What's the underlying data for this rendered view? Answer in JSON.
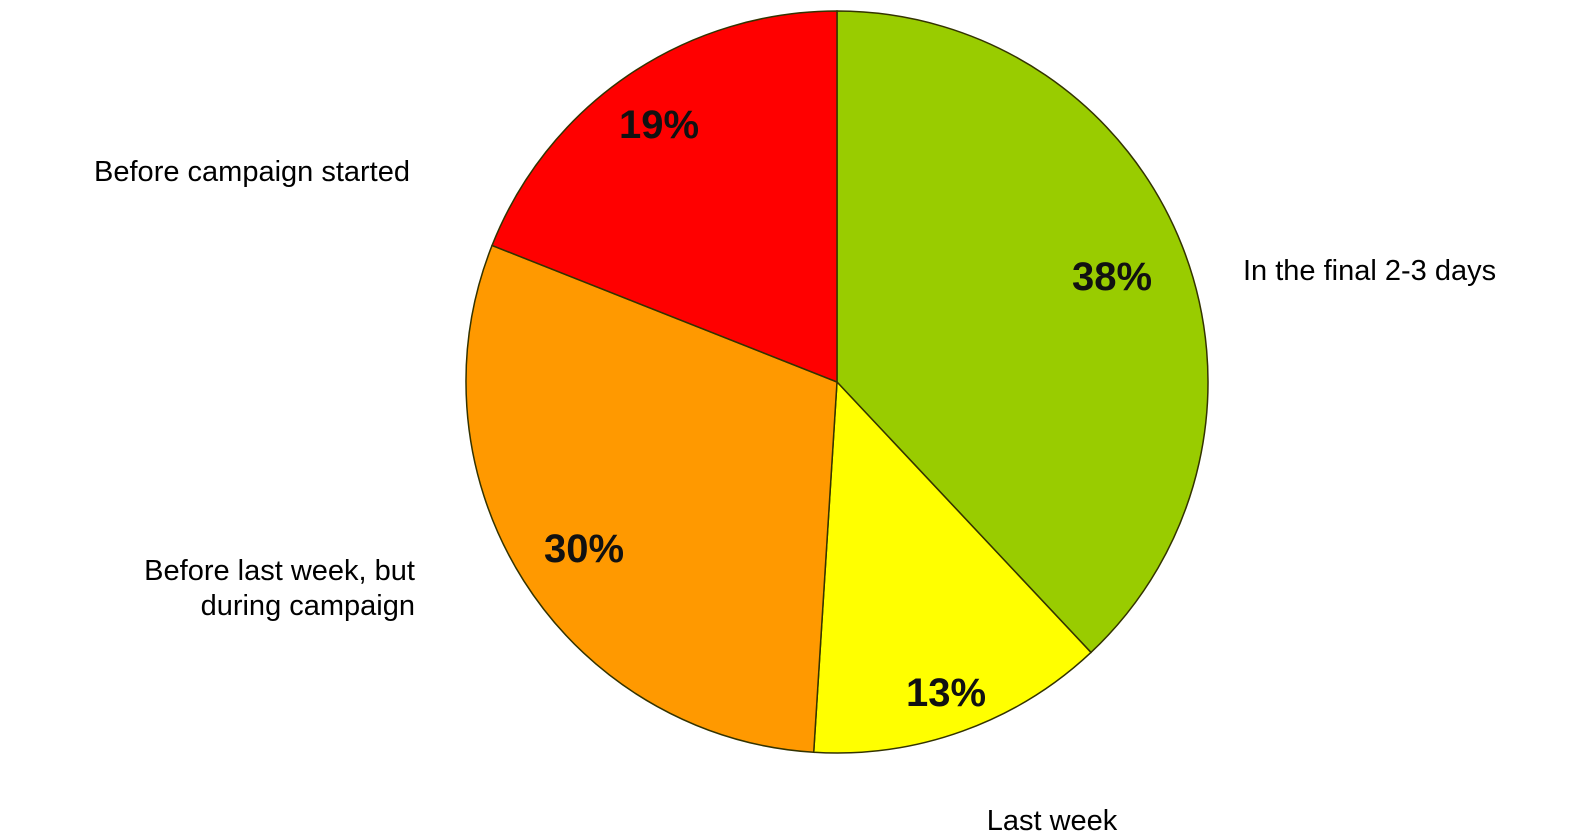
{
  "chart_data": {
    "type": "pie",
    "start_angle_deg": 0,
    "direction": "clockwise",
    "slices": [
      {
        "label": "In the final 2-3 days",
        "value": 38,
        "value_label": "38%",
        "color": "#99CC00"
      },
      {
        "label": "Last week",
        "value": 13,
        "value_label": "13%",
        "color": "#FFFF00"
      },
      {
        "label": "Before last week, but during campaign",
        "value": 30,
        "value_label": "30%",
        "color": "#FF9900"
      },
      {
        "label": "Before campaign started",
        "value": 19,
        "value_label": "19%",
        "color": "#FF0000"
      }
    ],
    "slice_outline_color": "#333300"
  }
}
